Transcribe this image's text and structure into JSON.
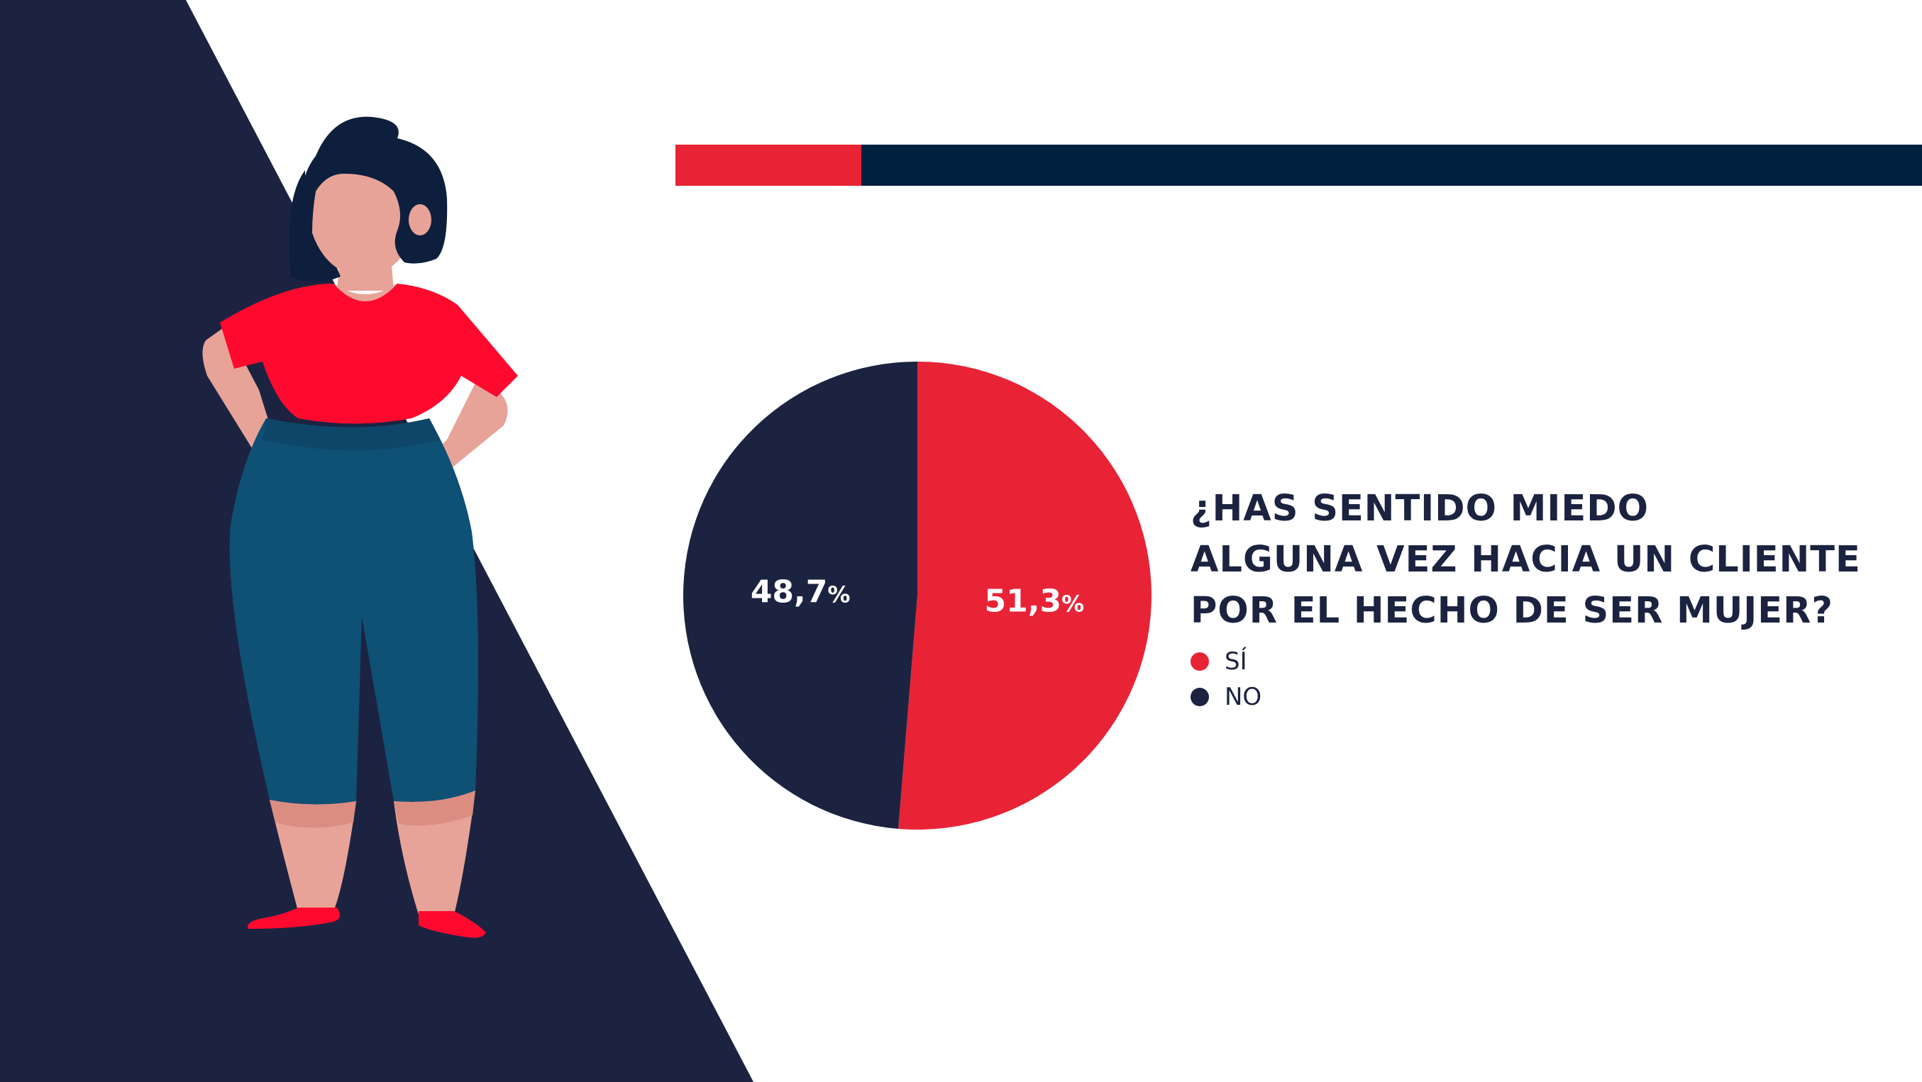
{
  "chart_data": {
    "type": "pie",
    "title": "¿HAS SENTIDO MIEDO ALGUNA VEZ HACIA UN CLIENTE POR EL HECHO DE SER MUJER?",
    "title_lines": [
      "¿HAS SENTIDO MIEDO",
      "ALGUNA VEZ HACIA UN CLIENTE",
      "POR EL HECHO DE SER MUJER?"
    ],
    "slices": [
      {
        "label": "SÍ",
        "value": 51.3,
        "display": "51,3",
        "color": "#e82336"
      },
      {
        "label": "NO",
        "value": 48.7,
        "display": "48,7",
        "color": "#1b2340"
      }
    ],
    "percent_sign": "%",
    "legend_position": "right"
  },
  "colors": {
    "navy": "#1b2340",
    "bar_navy": "#00203f",
    "red": "#e82336",
    "shirt": "#ff0a2e",
    "skin": "#e8a398",
    "pants": "#0f5075"
  },
  "illustration": "woman-standing-hands-on-hips"
}
